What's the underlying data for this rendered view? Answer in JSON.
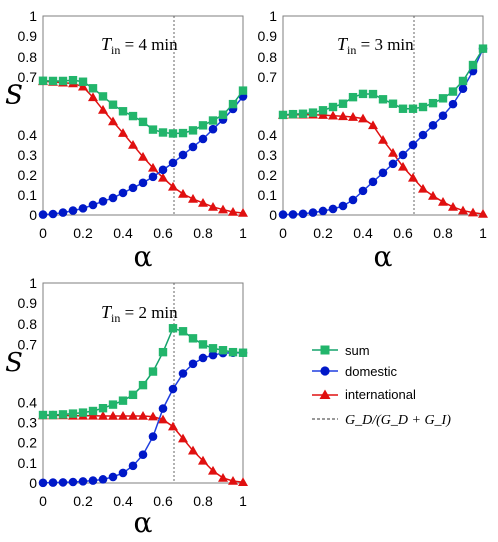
{
  "chart_data": [
    {
      "type": "line",
      "title_var": "T",
      "title_sub": "in",
      "title_rest": " = 4 min",
      "xlabel": "α",
      "ylabel": "S",
      "xlim": [
        0,
        1
      ],
      "ylim": [
        0,
        1
      ],
      "xticks": [
        "0",
        "0.2",
        "0.4",
        "0.6",
        "0.8",
        "1"
      ],
      "yticks": [
        "0",
        "0.1",
        "0.2",
        "0.3",
        "0.4",
        "0.7",
        "0.8",
        "0.9",
        "1"
      ],
      "vline": 0.655,
      "x": [
        0,
        0.05,
        0.1,
        0.15,
        0.2,
        0.25,
        0.3,
        0.35,
        0.4,
        0.45,
        0.5,
        0.55,
        0.6,
        0.65,
        0.7,
        0.75,
        0.8,
        0.85,
        0.9,
        0.95,
        1
      ],
      "series": [
        {
          "name": "sum",
          "values": [
            0.681,
            0.68,
            0.68,
            0.684,
            0.676,
            0.642,
            0.6,
            0.557,
            0.523,
            0.498,
            0.468,
            0.428,
            0.413,
            0.408,
            0.41,
            0.424,
            0.45,
            0.475,
            0.505,
            0.56,
            0.63
          ]
        },
        {
          "name": "domestic",
          "values": [
            0.002,
            0.005,
            0.012,
            0.022,
            0.033,
            0.05,
            0.068,
            0.085,
            0.11,
            0.135,
            0.16,
            0.19,
            0.225,
            0.26,
            0.3,
            0.34,
            0.38,
            0.43,
            0.48,
            0.535,
            0.6
          ]
        },
        {
          "name": "international",
          "values": [
            0.678,
            0.675,
            0.671,
            0.667,
            0.65,
            0.595,
            0.53,
            0.47,
            0.41,
            0.35,
            0.29,
            0.235,
            0.185,
            0.14,
            0.105,
            0.08,
            0.06,
            0.04,
            0.027,
            0.015,
            0.01
          ]
        }
      ]
    },
    {
      "type": "line",
      "title_var": "T",
      "title_sub": "in",
      "title_rest": " = 3 min",
      "xlabel": "α",
      "ylabel": "S",
      "xlim": [
        0,
        1
      ],
      "ylim": [
        0,
        1
      ],
      "xticks": [
        "0",
        "0.2",
        "0.4",
        "0.6",
        "0.8",
        "1"
      ],
      "yticks": [
        "0",
        "0.1",
        "0.2",
        "0.3",
        "0.4",
        "0.7",
        "0.8",
        "0.9",
        "1"
      ],
      "vline": 0.655,
      "x": [
        0,
        0.05,
        0.1,
        0.15,
        0.2,
        0.25,
        0.3,
        0.35,
        0.4,
        0.45,
        0.5,
        0.55,
        0.6,
        0.65,
        0.7,
        0.75,
        0.8,
        0.85,
        0.9,
        0.95,
        1
      ],
      "series": [
        {
          "name": "sum",
          "values": [
            0.504,
            0.508,
            0.51,
            0.516,
            0.528,
            0.545,
            0.562,
            0.596,
            0.613,
            0.612,
            0.585,
            0.562,
            0.536,
            0.536,
            0.545,
            0.565,
            0.59,
            0.625,
            0.68,
            0.76,
            0.84
          ]
        },
        {
          "name": "domestic",
          "values": [
            0.002,
            0.003,
            0.006,
            0.012,
            0.02,
            0.03,
            0.045,
            0.075,
            0.12,
            0.165,
            0.21,
            0.255,
            0.3,
            0.35,
            0.4,
            0.45,
            0.5,
            0.56,
            0.64,
            0.73,
            0.84
          ]
        },
        {
          "name": "international",
          "values": [
            0.503,
            0.505,
            0.505,
            0.505,
            0.503,
            0.5,
            0.497,
            0.493,
            0.485,
            0.45,
            0.375,
            0.31,
            0.24,
            0.185,
            0.13,
            0.095,
            0.065,
            0.04,
            0.022,
            0.012,
            0.005
          ]
        }
      ]
    },
    {
      "type": "line",
      "title_var": "T",
      "title_sub": "in",
      "title_rest": " = 2 min",
      "xlabel": "α",
      "ylabel": "S",
      "xlim": [
        0,
        1
      ],
      "ylim": [
        0,
        1
      ],
      "xticks": [
        "0",
        "0.2",
        "0.4",
        "0.6",
        "0.8",
        "1"
      ],
      "yticks": [
        "0",
        "0.1",
        "0.2",
        "0.3",
        "0.4",
        "0.7",
        "0.8",
        "0.9",
        "1"
      ],
      "vline": 0.655,
      "x": [
        0,
        0.05,
        0.1,
        0.15,
        0.2,
        0.25,
        0.3,
        0.35,
        0.4,
        0.45,
        0.5,
        0.55,
        0.6,
        0.65,
        0.7,
        0.75,
        0.8,
        0.85,
        0.9,
        0.95,
        1
      ],
      "series": [
        {
          "name": "sum",
          "values": [
            0.338,
            0.338,
            0.341,
            0.345,
            0.35,
            0.358,
            0.372,
            0.39,
            0.41,
            0.44,
            0.49,
            0.56,
            0.66,
            0.78,
            0.765,
            0.73,
            0.7,
            0.68,
            0.67,
            0.66,
            0.657
          ]
        },
        {
          "name": "domestic",
          "values": [
            0.001,
            0.002,
            0.003,
            0.005,
            0.008,
            0.012,
            0.018,
            0.03,
            0.05,
            0.085,
            0.14,
            0.23,
            0.37,
            0.47,
            0.55,
            0.6,
            0.63,
            0.645,
            0.655,
            0.657,
            0.657
          ]
        },
        {
          "name": "international",
          "values": [
            0.336,
            0.336,
            0.336,
            0.334,
            0.334,
            0.334,
            0.333,
            0.333,
            0.333,
            0.333,
            0.333,
            0.33,
            0.315,
            0.28,
            0.22,
            0.16,
            0.11,
            0.06,
            0.025,
            0.01,
            0.004
          ]
        }
      ]
    }
  ],
  "legend": {
    "sum": "sum",
    "domestic": "domestic",
    "international": "international",
    "ratio": "G_D/(G_D + G_I)"
  },
  "colors": {
    "sum_line": "#14a36b",
    "sum_marker": "#22b56b",
    "domestic_line": "#1f3fe0",
    "domestic_marker": "#0018c8",
    "international_line": "#e01010",
    "international_marker": "#e01010",
    "vline": "#555555"
  }
}
